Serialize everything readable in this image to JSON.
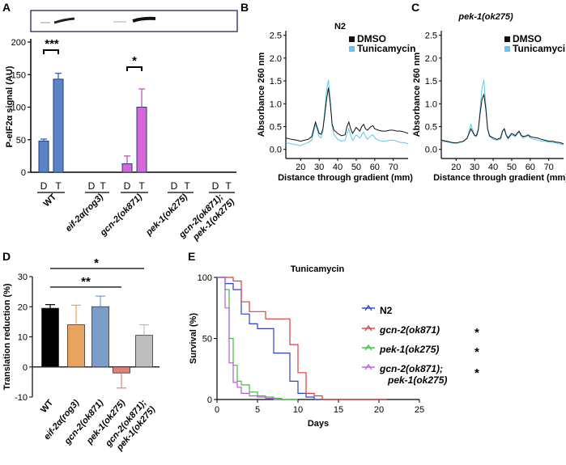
{
  "panels": {
    "A": {
      "letter": "A",
      "ylabel": "P-eIF2α signal (AU)",
      "yticks": [
        "0",
        "50",
        "100",
        "150",
        "200"
      ],
      "dt_labels": [
        "D",
        "T"
      ],
      "groups": [
        "WT",
        "eif-2α(rog3)",
        "gcn-2(ok871)",
        "pek-1(ok275)",
        "gcn-2(ok871);",
        "pek-1(ok275)"
      ],
      "sig1": "***",
      "sig2": "*"
    },
    "B": {
      "letter": "B",
      "title": "N2"
    },
    "C": {
      "letter": "C",
      "title": "pek-1(ok275)"
    },
    "D": {
      "letter": "D",
      "ylabel": "Translation reduction (%)",
      "yticks": [
        "-10",
        "0",
        "10",
        "20",
        "30"
      ],
      "xlabels": [
        "WT",
        "eif-2α(rog3)",
        "gcn-2(ok871)",
        "pek-1(ok275)",
        "gcn-2(ok871);",
        "pek-1(ok275)"
      ],
      "sig_top": "*",
      "sig_mid": "**"
    },
    "E": {
      "letter": "E",
      "title": "Tunicamycin",
      "ylabel": "Survival (%)",
      "xlabel": "Days",
      "xticks": [
        "0",
        "5",
        "10",
        "15",
        "20",
        "25"
      ],
      "yticks": [
        "0",
        "50",
        "100"
      ],
      "legend": [
        "N2",
        "gcn-2(ok871)",
        "pek-1(ok275)",
        "gcn-2(ok871);",
        "pek-1(ok275)"
      ],
      "stars": [
        "*",
        "*",
        "*"
      ]
    },
    "profile": {
      "ylabel": "Absorbance 260 nm",
      "xlabel": "Distance through gradient (mm)",
      "yticks": [
        "0.0",
        "0.5",
        "1.0",
        "1.5",
        "2.0",
        "2.5"
      ],
      "xticks": [
        "20",
        "30",
        "40",
        "50",
        "60",
        "70"
      ],
      "legend_dmso": "DMSO",
      "legend_tun": "Tunicamycin"
    }
  },
  "colors": {
    "wt": "#5b84c4",
    "gcn2": "#d966d6",
    "dmso": "#111111",
    "tun": "#5ec8ee",
    "d_wt": "#000000",
    "d_eif": "#e8a35e",
    "d_gcn2": "#7c9cca",
    "d_pek1": "#e08080",
    "d_dbl": "#bdbdbd",
    "e_n2": "#2b3fd6",
    "e_gcn2": "#e03b3b",
    "e_pek1": "#39c23a",
    "e_dbl": "#b05de0"
  },
  "chart_data": [
    {
      "panel": "A",
      "type": "bar",
      "title": "",
      "ylabel": "P-eIF2α signal (AU)",
      "ylim": [
        0,
        200
      ],
      "categories": [
        "WT D",
        "WT T",
        "eif-2α(rog3) D",
        "eif-2α(rog3) T",
        "gcn-2(ok871) D",
        "gcn-2(ok871) T",
        "pek-1(ok275) D",
        "pek-1(ok275) T",
        "gcn-2(ok871);pek-1(ok275) D",
        "gcn-2(ok871);pek-1(ok275) T"
      ],
      "values": [
        48,
        143,
        0,
        0,
        13,
        100,
        0,
        0,
        0,
        0
      ],
      "errors": [
        3,
        9,
        0,
        0,
        12,
        28,
        0,
        0,
        0,
        0
      ]
    },
    {
      "panel": "B",
      "type": "line",
      "title": "N2",
      "xlabel": "Distance through gradient (mm)",
      "ylabel": "Absorbance 260 nm",
      "xlim": [
        12,
        78
      ],
      "ylim": [
        -0.2,
        2.6
      ],
      "series": [
        {
          "name": "DMSO",
          "x": [
            12,
            15,
            18,
            20,
            22,
            24,
            26,
            28,
            30,
            31,
            32,
            33,
            34,
            35,
            36,
            37,
            38,
            40,
            42,
            44,
            45,
            46,
            47,
            48,
            50,
            52,
            53,
            54,
            55,
            56,
            58,
            59,
            60,
            62,
            64,
            66,
            68,
            70,
            72,
            74,
            76,
            78
          ],
          "y": [
            0.25,
            0.22,
            0.2,
            0.18,
            0.2,
            0.22,
            0.28,
            0.6,
            0.35,
            0.33,
            0.45,
            0.75,
            1.1,
            1.35,
            1.0,
            0.55,
            0.42,
            0.35,
            0.3,
            0.32,
            0.5,
            0.6,
            0.45,
            0.35,
            0.48,
            0.4,
            0.5,
            0.55,
            0.45,
            0.42,
            0.5,
            0.52,
            0.45,
            0.42,
            0.4,
            0.4,
            0.42,
            0.42,
            0.4,
            0.4,
            0.38,
            0.35
          ]
        },
        {
          "name": "Tunicamycin",
          "x": [
            12,
            15,
            18,
            20,
            22,
            24,
            26,
            28,
            30,
            31,
            32,
            33,
            34,
            35,
            36,
            37,
            38,
            40,
            42,
            44,
            45,
            46,
            47,
            48,
            50,
            52,
            53,
            54,
            55,
            56,
            58,
            59,
            60,
            62,
            64,
            66,
            68,
            70,
            72,
            74,
            76,
            78
          ],
          "y": [
            0.15,
            0.12,
            0.1,
            0.08,
            0.12,
            0.15,
            0.2,
            0.55,
            0.28,
            0.25,
            0.4,
            0.85,
            1.3,
            1.52,
            1.1,
            0.5,
            0.32,
            0.22,
            0.18,
            0.2,
            0.35,
            0.45,
            0.3,
            0.2,
            0.32,
            0.25,
            0.32,
            0.38,
            0.28,
            0.22,
            0.3,
            0.32,
            0.25,
            0.2,
            0.18,
            0.18,
            0.2,
            0.2,
            0.18,
            0.15,
            0.15,
            0.12
          ]
        }
      ]
    },
    {
      "panel": "C",
      "type": "line",
      "title": "pek-1(ok275)",
      "xlabel": "Distance through gradient (mm)",
      "ylabel": "Absorbance 260 nm",
      "xlim": [
        12,
        78
      ],
      "ylim": [
        -0.2,
        2.6
      ],
      "series": [
        {
          "name": "DMSO",
          "x": [
            12,
            15,
            18,
            20,
            22,
            24,
            26,
            28,
            30,
            31,
            32,
            33,
            34,
            35,
            36,
            37,
            38,
            40,
            42,
            44,
            45,
            46,
            47,
            48,
            50,
            52,
            53,
            54,
            55,
            56,
            58,
            59,
            60,
            62,
            64,
            66,
            68,
            70,
            72,
            74,
            76,
            78
          ],
          "y": [
            0.2,
            0.18,
            0.15,
            0.14,
            0.16,
            0.18,
            0.25,
            0.45,
            0.3,
            0.3,
            0.45,
            0.8,
            1.1,
            1.2,
            0.9,
            0.45,
            0.3,
            0.25,
            0.22,
            0.25,
            0.4,
            0.45,
            0.32,
            0.25,
            0.35,
            0.3,
            0.36,
            0.4,
            0.32,
            0.28,
            0.3,
            0.32,
            0.28,
            0.26,
            0.25,
            0.22,
            0.2,
            0.18,
            0.18,
            0.16,
            0.15,
            0.12
          ]
        },
        {
          "name": "Tunicamycin",
          "x": [
            12,
            15,
            18,
            20,
            22,
            24,
            26,
            28,
            30,
            31,
            32,
            33,
            34,
            35,
            36,
            37,
            38,
            40,
            42,
            44,
            45,
            46,
            47,
            48,
            50,
            52,
            53,
            54,
            55,
            56,
            58,
            59,
            60,
            62,
            64,
            66,
            68,
            70,
            72,
            74,
            76,
            78
          ],
          "y": [
            0.18,
            0.16,
            0.14,
            0.13,
            0.15,
            0.17,
            0.24,
            0.55,
            0.3,
            0.28,
            0.42,
            0.9,
            1.35,
            1.52,
            1.0,
            0.45,
            0.28,
            0.22,
            0.2,
            0.22,
            0.38,
            0.45,
            0.3,
            0.22,
            0.32,
            0.28,
            0.33,
            0.38,
            0.3,
            0.25,
            0.28,
            0.3,
            0.25,
            0.22,
            0.2,
            0.18,
            0.18,
            0.16,
            0.15,
            0.14,
            0.12,
            0.1
          ]
        }
      ]
    },
    {
      "panel": "D",
      "type": "bar",
      "ylabel": "Translation reduction (%)",
      "ylim": [
        -10,
        30
      ],
      "categories": [
        "WT",
        "eif-2α(rog3)",
        "gcn-2(ok871)",
        "pek-1(ok275)",
        "gcn-2(ok871);pek-1(ok275)"
      ],
      "values": [
        19.5,
        14,
        20,
        -2,
        10.5
      ],
      "errors": [
        1.2,
        6.5,
        3.5,
        5,
        3.5
      ]
    },
    {
      "panel": "E",
      "type": "line",
      "title": "Tunicamycin",
      "xlabel": "Days",
      "ylabel": "Survival (%)",
      "xlim": [
        0,
        25
      ],
      "ylim": [
        0,
        100
      ],
      "series": [
        {
          "name": "N2",
          "x": [
            0,
            1,
            2,
            3,
            4,
            5,
            6,
            7,
            8,
            9,
            10,
            11,
            12,
            21
          ],
          "y": [
            100,
            95,
            90,
            70,
            62,
            58,
            58,
            38,
            38,
            15,
            5,
            2,
            0,
            0
          ]
        },
        {
          "name": "gcn-2(ok871)",
          "x": [
            0,
            1,
            2,
            3,
            4,
            5,
            6,
            7,
            9,
            10,
            11,
            12,
            13,
            21
          ],
          "y": [
            100,
            100,
            97,
            80,
            72,
            72,
            66,
            66,
            45,
            22,
            5,
            3,
            0,
            0
          ]
        },
        {
          "name": "pek-1(ok275)",
          "x": [
            0,
            1,
            1.5,
            2,
            2.5,
            3,
            4,
            5,
            6,
            7,
            8,
            9,
            10
          ],
          "y": [
            100,
            90,
            50,
            28,
            15,
            12,
            6,
            3,
            2,
            1,
            0,
            0,
            0
          ]
        },
        {
          "name": "gcn-2(ok871);pek-1(ok275)",
          "x": [
            0,
            1,
            1.5,
            2,
            2.5,
            3,
            4,
            5,
            6,
            7,
            8
          ],
          "y": [
            100,
            75,
            30,
            14,
            10,
            5,
            3,
            2,
            1,
            0,
            0
          ]
        }
      ]
    }
  ]
}
